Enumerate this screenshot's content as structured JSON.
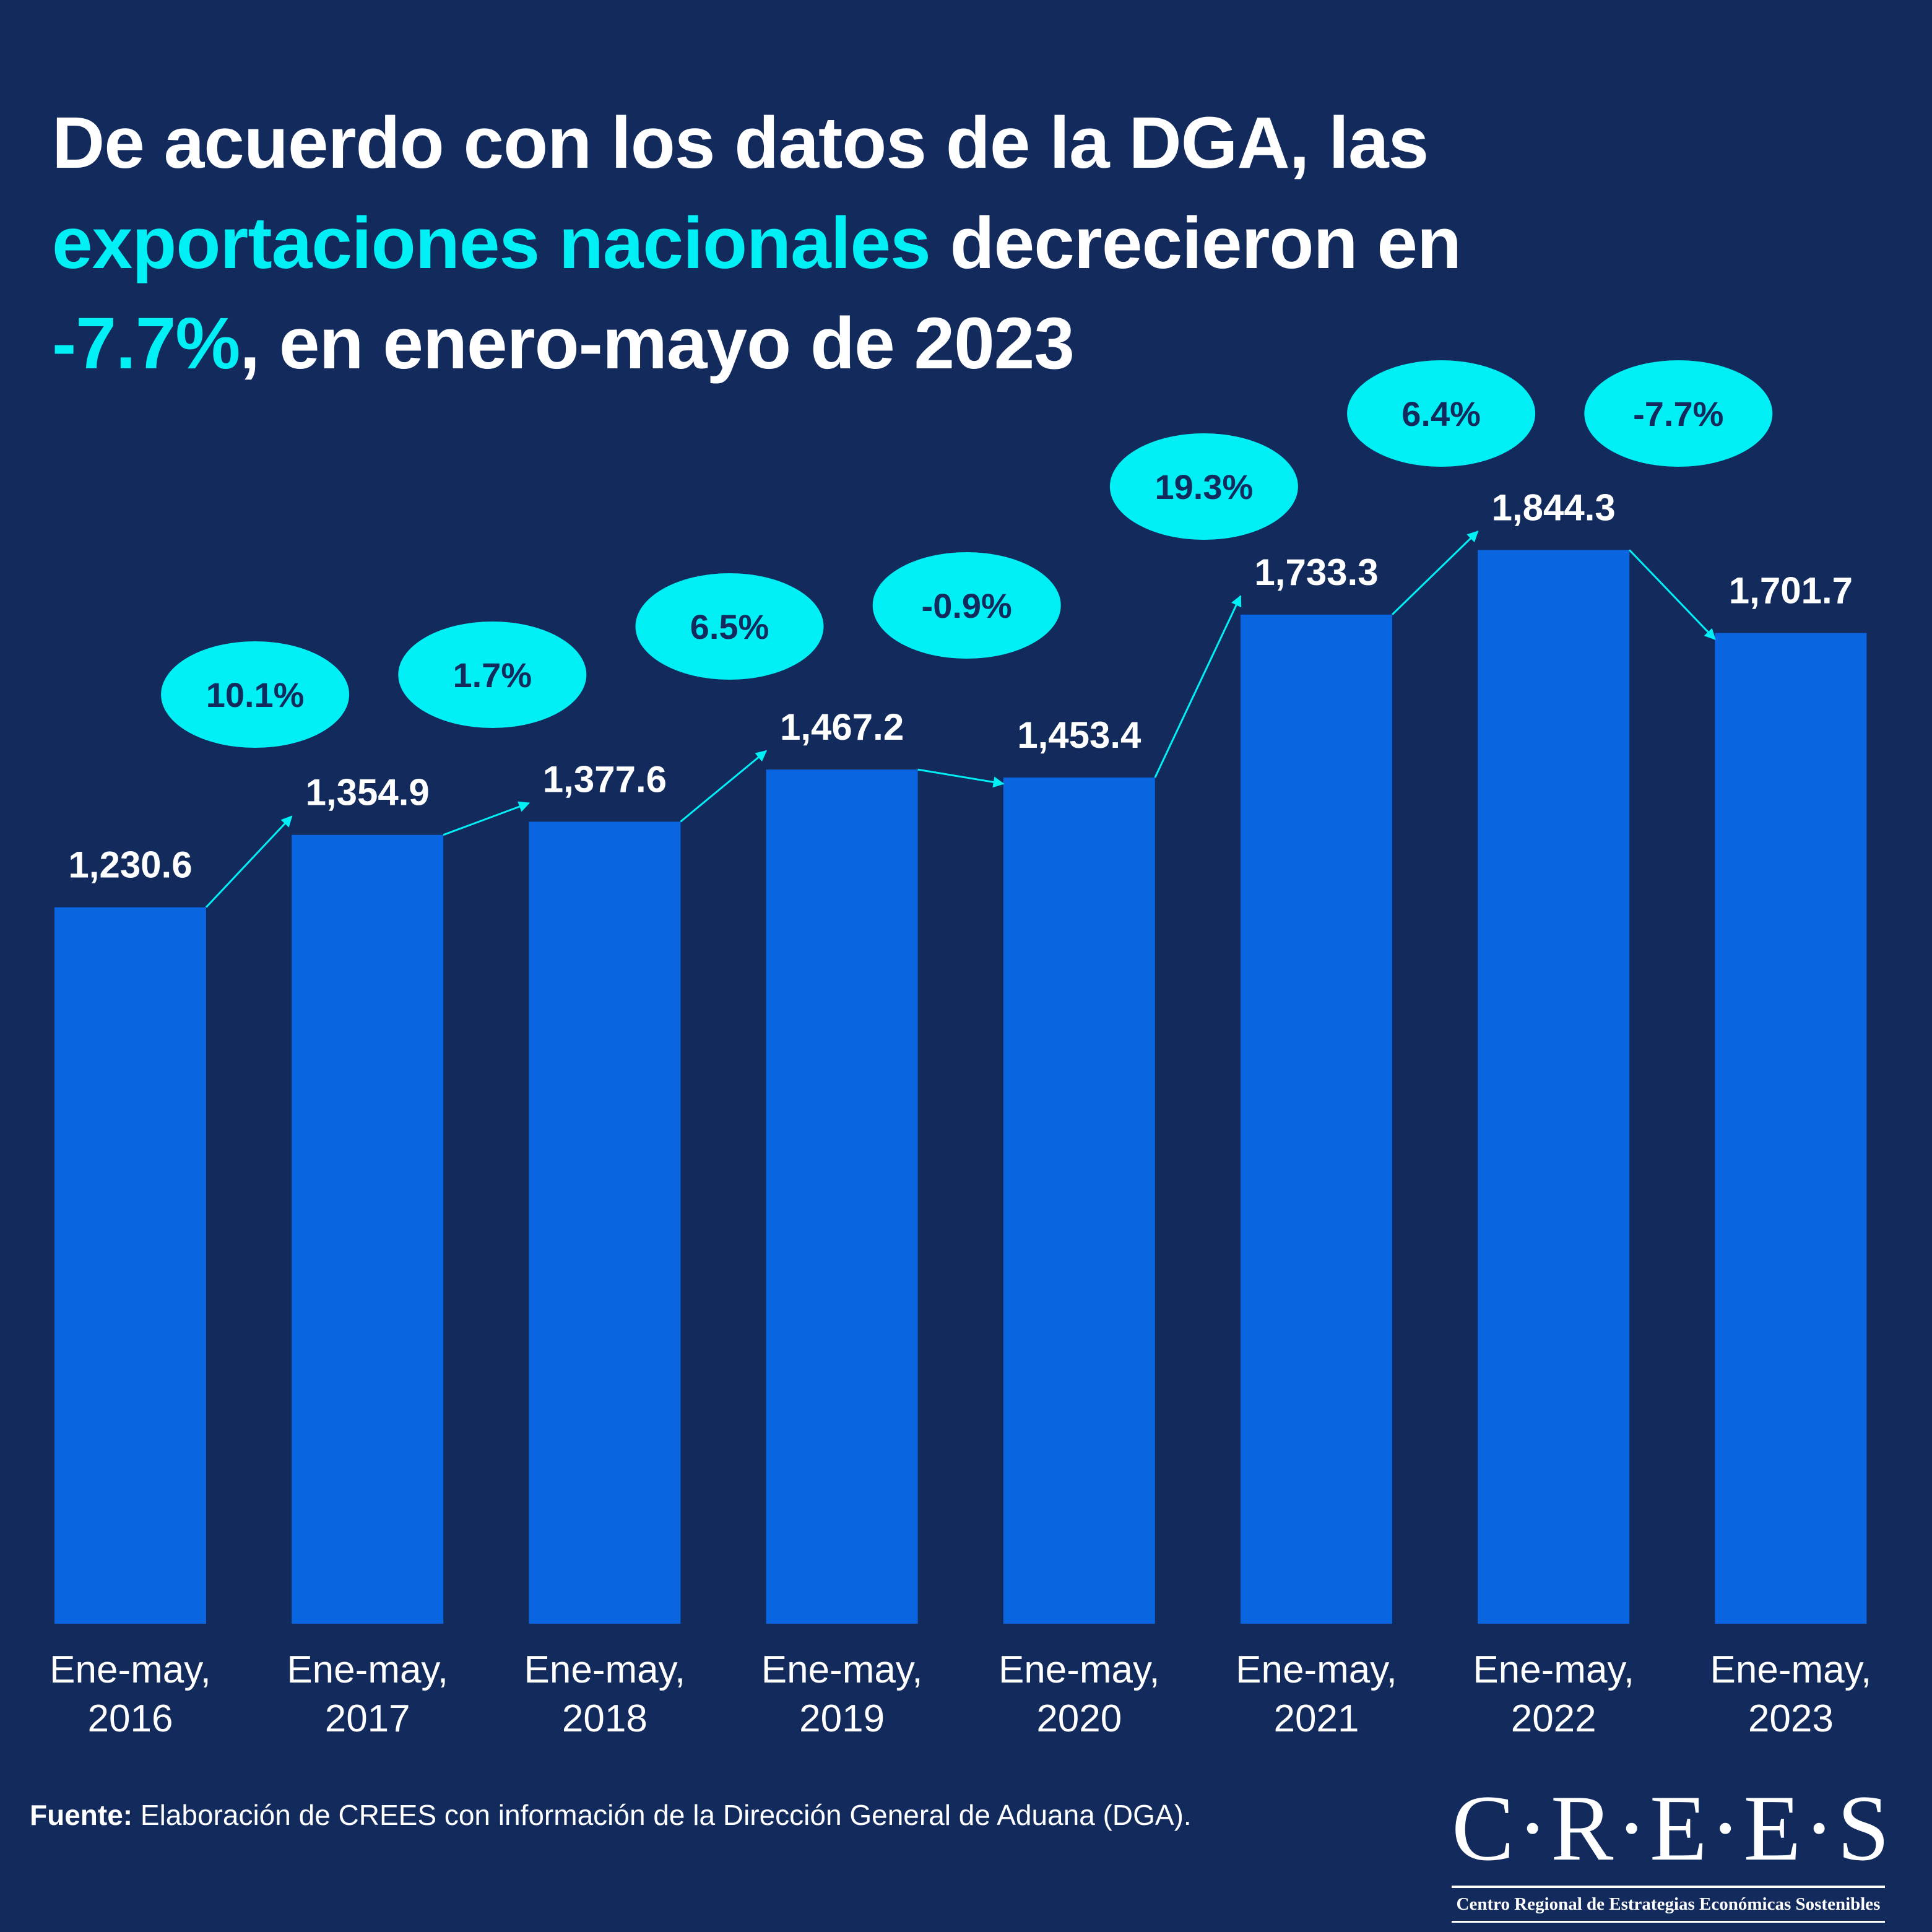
{
  "title": {
    "line1": "De acuerdo con los datos de la DGA, las",
    "highlight1": "exportaciones nacionales",
    "line2_rest": " decrecieron en",
    "highlight2": "-7.7%",
    "line3_rest": ", en enero-mayo de 2023"
  },
  "colors": {
    "background": "#132a5c",
    "bar": "#0966e0",
    "accent": "#00f0f6",
    "bubble_text": "#132a5c",
    "text": "#ffffff"
  },
  "chart_data": {
    "type": "bar",
    "title": "De acuerdo con los datos de la DGA, las exportaciones nacionales decrecieron en -7.7%, en enero-mayo de 2023",
    "xlabel": "",
    "ylabel": "",
    "ylim": [
      0,
      2000
    ],
    "grid": false,
    "legend": "none",
    "categories": [
      [
        "Ene-may,",
        "2016"
      ],
      [
        "Ene-may,",
        "2017"
      ],
      [
        "Ene-may,",
        "2018"
      ],
      [
        "Ene-may,",
        "2019"
      ],
      [
        "Ene-may,",
        "2020"
      ],
      [
        "Ene-may,",
        "2021"
      ],
      [
        "Ene-may,",
        "2022"
      ],
      [
        "Ene-may,",
        "2023"
      ]
    ],
    "values": [
      1230.6,
      1354.9,
      1377.6,
      1467.2,
      1453.4,
      1733.3,
      1844.3,
      1701.7
    ],
    "value_labels": [
      "1,230.6",
      "1,354.9",
      "1,377.6",
      "1,467.2",
      "1,453.4",
      "1,733.3",
      "1,844.3",
      "1,701.7"
    ],
    "growth_rates": [
      10.1,
      1.7,
      6.5,
      -0.9,
      19.3,
      6.4,
      -7.7
    ],
    "growth_labels": [
      "10.1%",
      "1.7%",
      "6.5%",
      "-0.9%",
      "19.3%",
      "6.4%",
      "-7.7%"
    ]
  },
  "footer": {
    "source_label": "Fuente:",
    "source_text": " Elaboración de CREES con información de la Dirección General de Aduana (DGA)."
  },
  "logo": {
    "main": "C·R·E·E·S",
    "subtitle": "Centro Regional de Estrategias Económicas Sostenibles"
  }
}
